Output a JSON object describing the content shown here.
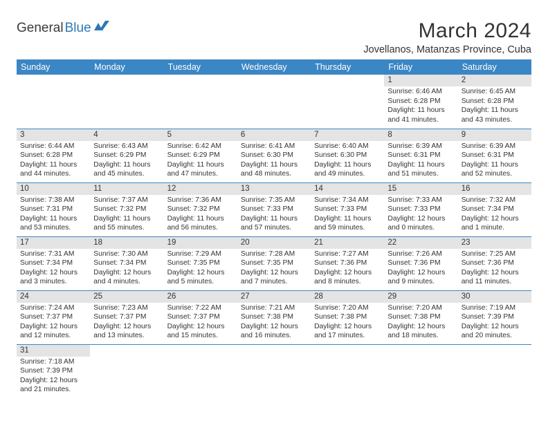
{
  "logo": {
    "text1": "General",
    "text2": "Blue"
  },
  "title": "March 2024",
  "location": "Jovellanos, Matanzas Province, Cuba",
  "colors": {
    "header_bg": "#3b86c4",
    "header_fg": "#ffffff",
    "daynum_bg": "#e4e4e4",
    "border": "#3b86c4",
    "text": "#333333",
    "logo_blue": "#2f78b5"
  },
  "fonts": {
    "title_size": 30,
    "location_size": 14.5,
    "th_size": 12.5,
    "cell_size": 10.3
  },
  "weekdays": [
    "Sunday",
    "Monday",
    "Tuesday",
    "Wednesday",
    "Thursday",
    "Friday",
    "Saturday"
  ],
  "weeks": [
    [
      null,
      null,
      null,
      null,
      null,
      {
        "n": "1",
        "sr": "Sunrise: 6:46 AM",
        "ss": "Sunset: 6:28 PM",
        "d1": "Daylight: 11 hours",
        "d2": "and 41 minutes."
      },
      {
        "n": "2",
        "sr": "Sunrise: 6:45 AM",
        "ss": "Sunset: 6:28 PM",
        "d1": "Daylight: 11 hours",
        "d2": "and 43 minutes."
      }
    ],
    [
      {
        "n": "3",
        "sr": "Sunrise: 6:44 AM",
        "ss": "Sunset: 6:28 PM",
        "d1": "Daylight: 11 hours",
        "d2": "and 44 minutes."
      },
      {
        "n": "4",
        "sr": "Sunrise: 6:43 AM",
        "ss": "Sunset: 6:29 PM",
        "d1": "Daylight: 11 hours",
        "d2": "and 45 minutes."
      },
      {
        "n": "5",
        "sr": "Sunrise: 6:42 AM",
        "ss": "Sunset: 6:29 PM",
        "d1": "Daylight: 11 hours",
        "d2": "and 47 minutes."
      },
      {
        "n": "6",
        "sr": "Sunrise: 6:41 AM",
        "ss": "Sunset: 6:30 PM",
        "d1": "Daylight: 11 hours",
        "d2": "and 48 minutes."
      },
      {
        "n": "7",
        "sr": "Sunrise: 6:40 AM",
        "ss": "Sunset: 6:30 PM",
        "d1": "Daylight: 11 hours",
        "d2": "and 49 minutes."
      },
      {
        "n": "8",
        "sr": "Sunrise: 6:39 AM",
        "ss": "Sunset: 6:31 PM",
        "d1": "Daylight: 11 hours",
        "d2": "and 51 minutes."
      },
      {
        "n": "9",
        "sr": "Sunrise: 6:39 AM",
        "ss": "Sunset: 6:31 PM",
        "d1": "Daylight: 11 hours",
        "d2": "and 52 minutes."
      }
    ],
    [
      {
        "n": "10",
        "sr": "Sunrise: 7:38 AM",
        "ss": "Sunset: 7:31 PM",
        "d1": "Daylight: 11 hours",
        "d2": "and 53 minutes."
      },
      {
        "n": "11",
        "sr": "Sunrise: 7:37 AM",
        "ss": "Sunset: 7:32 PM",
        "d1": "Daylight: 11 hours",
        "d2": "and 55 minutes."
      },
      {
        "n": "12",
        "sr": "Sunrise: 7:36 AM",
        "ss": "Sunset: 7:32 PM",
        "d1": "Daylight: 11 hours",
        "d2": "and 56 minutes."
      },
      {
        "n": "13",
        "sr": "Sunrise: 7:35 AM",
        "ss": "Sunset: 7:33 PM",
        "d1": "Daylight: 11 hours",
        "d2": "and 57 minutes."
      },
      {
        "n": "14",
        "sr": "Sunrise: 7:34 AM",
        "ss": "Sunset: 7:33 PM",
        "d1": "Daylight: 11 hours",
        "d2": "and 59 minutes."
      },
      {
        "n": "15",
        "sr": "Sunrise: 7:33 AM",
        "ss": "Sunset: 7:33 PM",
        "d1": "Daylight: 12 hours",
        "d2": "and 0 minutes."
      },
      {
        "n": "16",
        "sr": "Sunrise: 7:32 AM",
        "ss": "Sunset: 7:34 PM",
        "d1": "Daylight: 12 hours",
        "d2": "and 1 minute."
      }
    ],
    [
      {
        "n": "17",
        "sr": "Sunrise: 7:31 AM",
        "ss": "Sunset: 7:34 PM",
        "d1": "Daylight: 12 hours",
        "d2": "and 3 minutes."
      },
      {
        "n": "18",
        "sr": "Sunrise: 7:30 AM",
        "ss": "Sunset: 7:34 PM",
        "d1": "Daylight: 12 hours",
        "d2": "and 4 minutes."
      },
      {
        "n": "19",
        "sr": "Sunrise: 7:29 AM",
        "ss": "Sunset: 7:35 PM",
        "d1": "Daylight: 12 hours",
        "d2": "and 5 minutes."
      },
      {
        "n": "20",
        "sr": "Sunrise: 7:28 AM",
        "ss": "Sunset: 7:35 PM",
        "d1": "Daylight: 12 hours",
        "d2": "and 7 minutes."
      },
      {
        "n": "21",
        "sr": "Sunrise: 7:27 AM",
        "ss": "Sunset: 7:36 PM",
        "d1": "Daylight: 12 hours",
        "d2": "and 8 minutes."
      },
      {
        "n": "22",
        "sr": "Sunrise: 7:26 AM",
        "ss": "Sunset: 7:36 PM",
        "d1": "Daylight: 12 hours",
        "d2": "and 9 minutes."
      },
      {
        "n": "23",
        "sr": "Sunrise: 7:25 AM",
        "ss": "Sunset: 7:36 PM",
        "d1": "Daylight: 12 hours",
        "d2": "and 11 minutes."
      }
    ],
    [
      {
        "n": "24",
        "sr": "Sunrise: 7:24 AM",
        "ss": "Sunset: 7:37 PM",
        "d1": "Daylight: 12 hours",
        "d2": "and 12 minutes."
      },
      {
        "n": "25",
        "sr": "Sunrise: 7:23 AM",
        "ss": "Sunset: 7:37 PM",
        "d1": "Daylight: 12 hours",
        "d2": "and 13 minutes."
      },
      {
        "n": "26",
        "sr": "Sunrise: 7:22 AM",
        "ss": "Sunset: 7:37 PM",
        "d1": "Daylight: 12 hours",
        "d2": "and 15 minutes."
      },
      {
        "n": "27",
        "sr": "Sunrise: 7:21 AM",
        "ss": "Sunset: 7:38 PM",
        "d1": "Daylight: 12 hours",
        "d2": "and 16 minutes."
      },
      {
        "n": "28",
        "sr": "Sunrise: 7:20 AM",
        "ss": "Sunset: 7:38 PM",
        "d1": "Daylight: 12 hours",
        "d2": "and 17 minutes."
      },
      {
        "n": "29",
        "sr": "Sunrise: 7:20 AM",
        "ss": "Sunset: 7:38 PM",
        "d1": "Daylight: 12 hours",
        "d2": "and 18 minutes."
      },
      {
        "n": "30",
        "sr": "Sunrise: 7:19 AM",
        "ss": "Sunset: 7:39 PM",
        "d1": "Daylight: 12 hours",
        "d2": "and 20 minutes."
      }
    ],
    [
      {
        "n": "31",
        "sr": "Sunrise: 7:18 AM",
        "ss": "Sunset: 7:39 PM",
        "d1": "Daylight: 12 hours",
        "d2": "and 21 minutes."
      },
      null,
      null,
      null,
      null,
      null,
      null
    ]
  ]
}
